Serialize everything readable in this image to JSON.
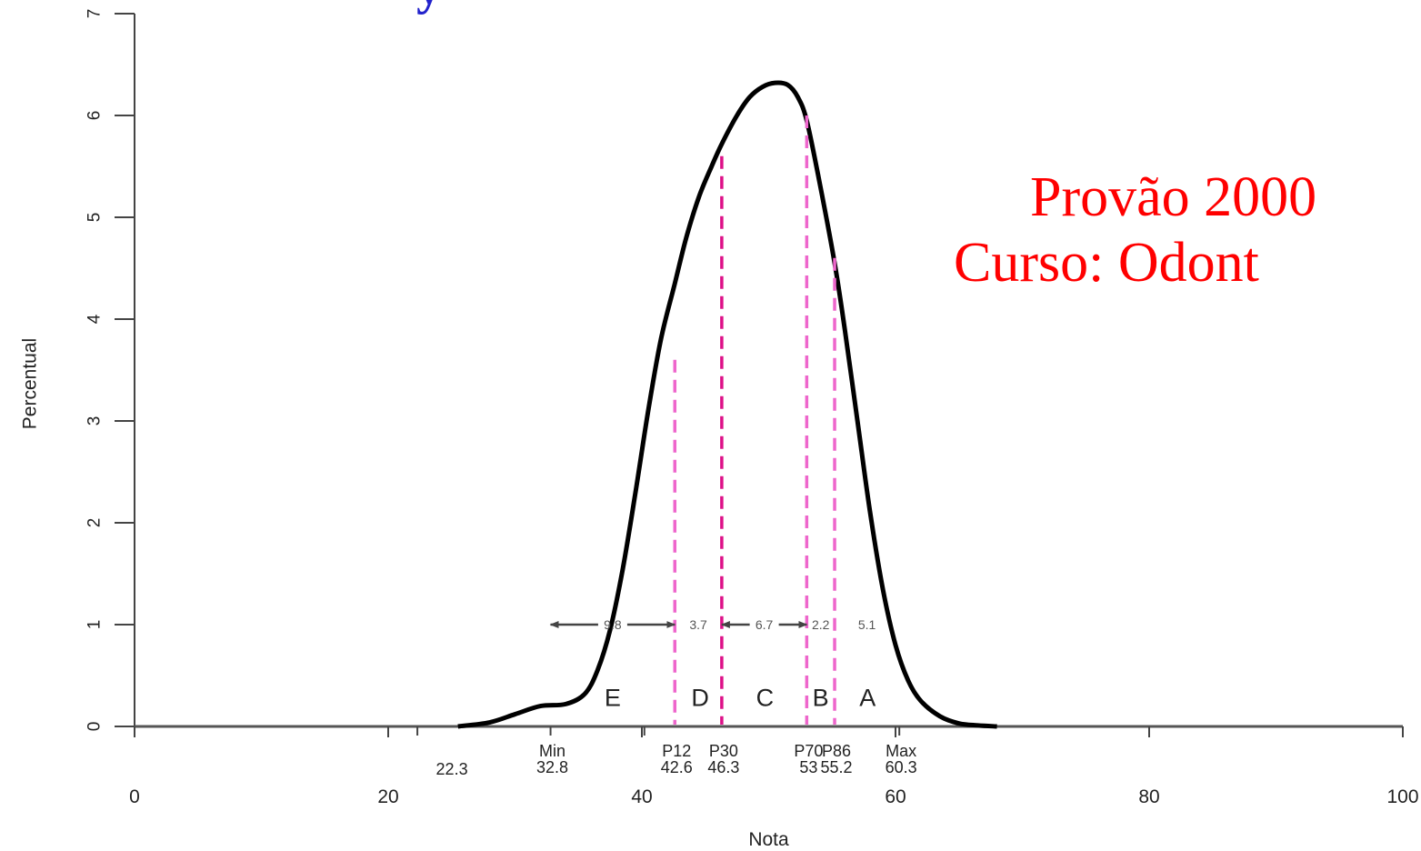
{
  "chart_data": {
    "type": "line",
    "title_fragment": "y",
    "xlabel": "Nota",
    "ylabel": "Percentual",
    "xlim": [
      0,
      100
    ],
    "ylim": [
      0,
      7
    ],
    "x_ticks": [
      0,
      20,
      40,
      60,
      80,
      100
    ],
    "x_tick_labels": [
      "0",
      "20",
      "40",
      "60",
      "80",
      "100"
    ],
    "y_ticks": [
      0,
      1,
      2,
      3,
      4,
      5,
      6,
      7
    ],
    "y_tick_labels": [
      "0",
      "1",
      "2",
      "3",
      "4",
      "5",
      "6",
      "7"
    ],
    "grid": false,
    "series": [
      {
        "x": [
          25.5,
          28,
          30,
          32,
          34,
          35.5,
          36.5,
          37.5,
          38.5,
          39.5,
          40.5,
          41.5,
          42.6,
          43.5,
          44.5,
          45.5,
          46.3,
          47.5,
          48.5,
          49.5,
          50.5,
          51.5,
          52.3,
          53,
          54,
          55.2,
          56,
          57,
          58,
          59,
          60,
          61,
          62,
          63.5,
          65,
          66.5,
          68
        ],
        "y": [
          0.0,
          0.04,
          0.12,
          0.2,
          0.22,
          0.32,
          0.55,
          0.95,
          1.55,
          2.3,
          3.1,
          3.8,
          4.35,
          4.8,
          5.2,
          5.5,
          5.72,
          6.0,
          6.18,
          6.28,
          6.32,
          6.3,
          6.18,
          5.95,
          5.35,
          4.55,
          3.9,
          3.0,
          2.1,
          1.35,
          0.8,
          0.45,
          0.25,
          0.1,
          0.03,
          0.01,
          0.0
        ]
      }
    ],
    "percentile_lines": [
      {
        "label": "P12",
        "value_label": "42.6",
        "x": 42.6,
        "y_top": 3.6,
        "color": "#ee66cc"
      },
      {
        "label": "P30",
        "value_label": "46.3",
        "x": 46.3,
        "y_top": 5.6,
        "color": "#dd1188"
      },
      {
        "label": "P70",
        "value_label": "53",
        "x": 53,
        "y_top": 6.0,
        "color": "#ee66cc"
      },
      {
        "label": "P86",
        "value_label": "55.2",
        "x": 55.2,
        "y_top": 4.6,
        "color": "#ee66cc"
      }
    ],
    "bottom_marks": [
      {
        "label": "Min",
        "value_label": "32.8",
        "x": 32.8
      },
      {
        "label": "",
        "value_label": "22.3",
        "x": 22.3
      },
      {
        "label": "Max",
        "value_label": "60.3",
        "x": 60.3
      }
    ],
    "extra_ticks": [
      22.3,
      32.8,
      40.2,
      60.3
    ],
    "interval_arrows": [
      {
        "label": "9.8",
        "x1": 32.8,
        "x2": 42.6,
        "y": 1,
        "arrows": "both"
      },
      {
        "label": "3.7",
        "x1": 42.6,
        "x2": 46.3,
        "y": 1,
        "arrows": "none"
      },
      {
        "label": "6.7",
        "x1": 46.3,
        "x2": 53,
        "y": 1,
        "arrows": "both"
      },
      {
        "label": "2.2",
        "x1": 53,
        "x2": 55.2,
        "y": 1,
        "arrows": "none"
      },
      {
        "label": "5.1",
        "x1": 55.2,
        "x2": 60.3,
        "y": 1,
        "arrows": "none"
      }
    ],
    "grade_labels": [
      {
        "label": "E",
        "x": 37.7
      },
      {
        "label": "D",
        "x": 44.6
      },
      {
        "label": "C",
        "x": 49.7
      },
      {
        "label": "B",
        "x": 54.1
      },
      {
        "label": "A",
        "x": 57.8
      }
    ],
    "annotations": [
      {
        "text": "Provão 2000"
      },
      {
        "text": "Curso: Odont"
      }
    ]
  }
}
